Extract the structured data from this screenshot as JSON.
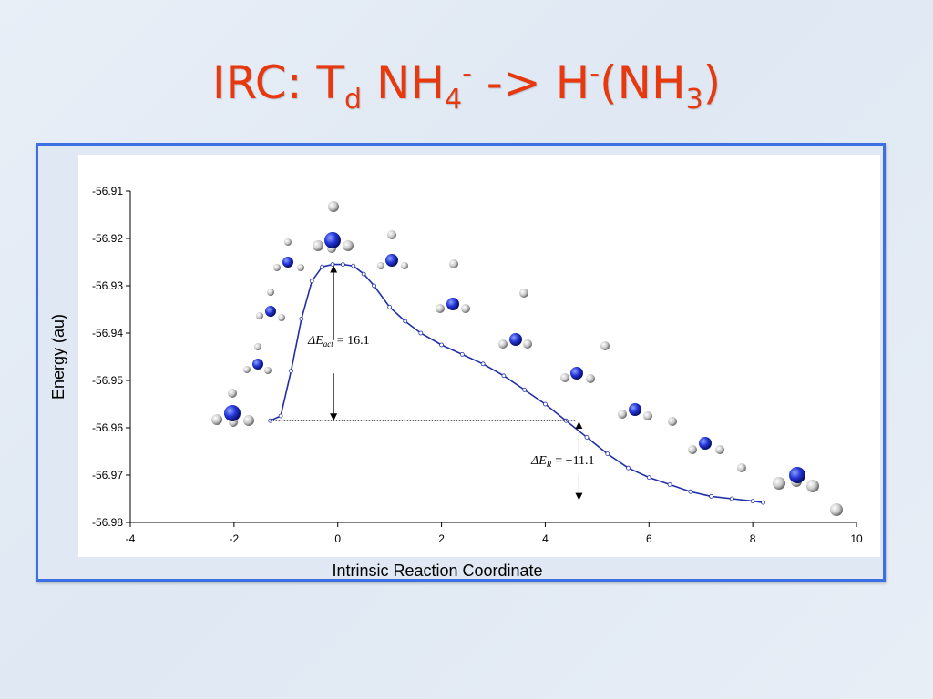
{
  "slide": {
    "title_parts": {
      "pre": "IRC: T",
      "sub1": "d",
      "mid1": " NH",
      "sub2": "4",
      "sup1": "-",
      "mid2": " -> H",
      "sup2": "-",
      "mid3": "(NH",
      "sub3": "3",
      "post": ")"
    }
  },
  "chart_data": {
    "type": "line",
    "xlabel": "Intrinsic Reaction Coordinate",
    "ylabel": "Energy (au)",
    "xlim": [
      -4,
      10
    ],
    "ylim": [
      -56.98,
      -56.91
    ],
    "xticks": [
      "-4",
      "-2",
      "0",
      "2",
      "4",
      "6",
      "8",
      "10"
    ],
    "yticks": [
      "-56.91",
      "-56.92",
      "-56.93",
      "-56.94",
      "-56.95",
      "-56.96",
      "-56.97",
      "-56.98"
    ],
    "grid": false,
    "series": [
      {
        "color": "#1f2fa8",
        "x": [
          -1.3,
          -1.1,
          -0.9,
          -0.7,
          -0.5,
          -0.3,
          -0.1,
          0.1,
          0.3,
          0.5,
          0.7,
          1.0,
          1.3,
          1.6,
          2.0,
          2.4,
          2.8,
          3.2,
          3.6,
          4.0,
          4.4,
          4.8,
          5.2,
          5.6,
          6.0,
          6.4,
          6.8,
          7.2,
          7.6,
          8.0,
          8.2
        ],
        "y": [
          -56.9585,
          -56.9575,
          -56.948,
          -56.937,
          -56.929,
          -56.926,
          -56.9255,
          -56.9255,
          -56.9258,
          -56.9275,
          -56.93,
          -56.9345,
          -56.9375,
          -56.94,
          -56.9425,
          -56.9445,
          -56.9465,
          -56.949,
          -56.952,
          -56.955,
          -56.9585,
          -56.962,
          -56.9655,
          -56.9685,
          -56.9705,
          -56.972,
          -56.9735,
          -56.9745,
          -56.975,
          -56.9755,
          -56.9758
        ]
      }
    ],
    "annotations": [
      {
        "label": "ΔE",
        "sub": "act",
        "value": "= 16.1"
      },
      {
        "label": "ΔE",
        "sub": "R",
        "value": "= −11.1"
      }
    ]
  }
}
